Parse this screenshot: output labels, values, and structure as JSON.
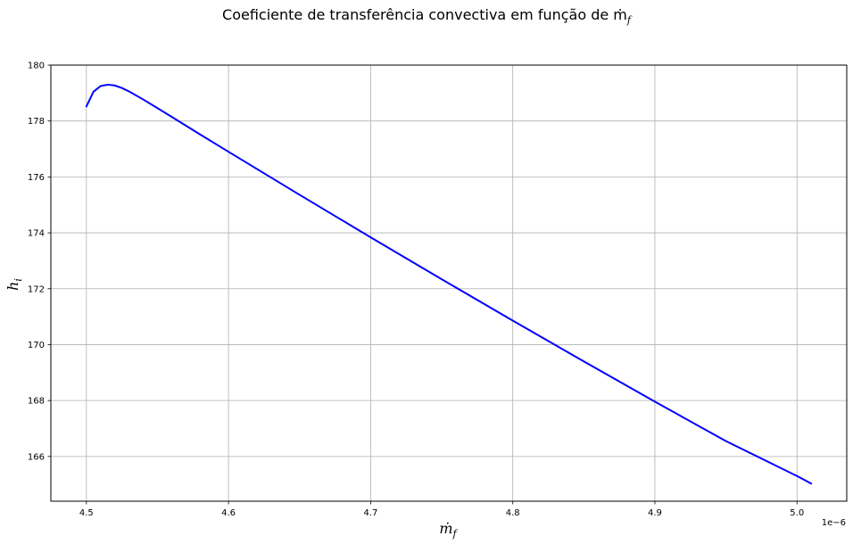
{
  "chart_data": {
    "type": "line",
    "title": "Coeficiente de transferência convectiva em função de ṁ",
    "title_subscript": "f",
    "xlabel": "ṁ",
    "xlabel_subscript": "f",
    "ylabel": "h",
    "ylabel_subscript": "i",
    "x_offset_label": "1e−6",
    "xlim": [
      4.475,
      5.035
    ],
    "ylim": [
      164.4,
      180.0
    ],
    "xticks": [
      "4.5",
      "4.6",
      "4.7",
      "4.8",
      "4.9",
      "5.0"
    ],
    "yticks": [
      "166",
      "168",
      "170",
      "172",
      "174",
      "176",
      "178",
      "180"
    ],
    "grid": true,
    "series": [
      {
        "color": "#0000ff",
        "x": [
          4.5,
          4.505,
          4.51,
          4.515,
          4.52,
          4.525,
          4.53,
          4.54,
          4.55,
          4.56,
          4.58,
          4.6,
          4.65,
          4.7,
          4.75,
          4.8,
          4.85,
          4.9,
          4.95,
          5.0,
          5.01
        ],
        "y": [
          178.52,
          179.05,
          179.25,
          179.3,
          179.27,
          179.18,
          179.06,
          178.77,
          178.46,
          178.15,
          177.52,
          176.9,
          175.36,
          173.84,
          172.34,
          170.86,
          169.4,
          167.96,
          166.55,
          165.3,
          165.03
        ]
      }
    ]
  }
}
